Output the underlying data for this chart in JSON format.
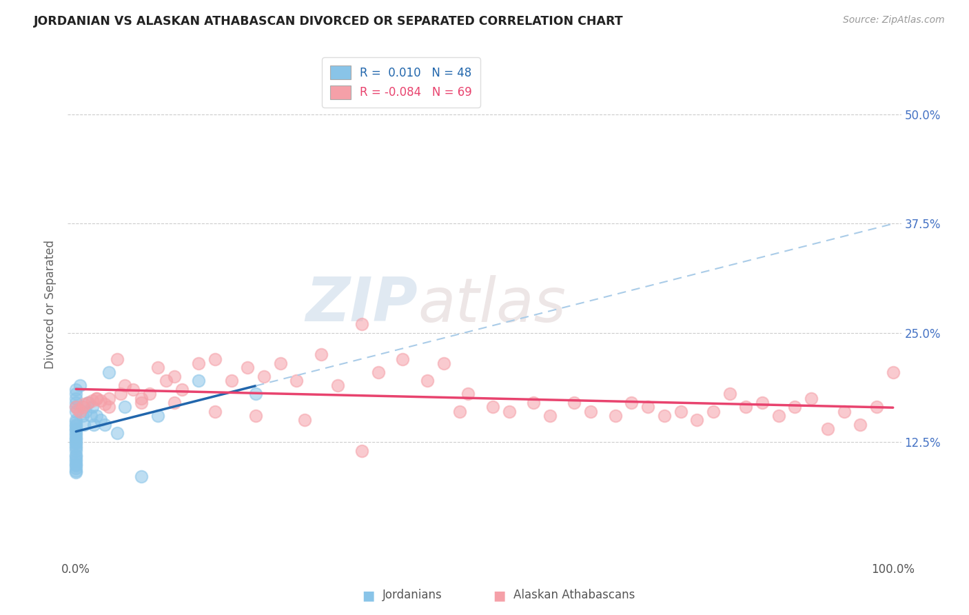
{
  "title": "JORDANIAN VS ALASKAN ATHABASCAN DIVORCED OR SEPARATED CORRELATION CHART",
  "source": "Source: ZipAtlas.com",
  "ylabel": "Divorced or Separated",
  "blue_color": "#89c4e8",
  "pink_color": "#f5a0a8",
  "blue_line_color": "#2166ac",
  "pink_line_color": "#e8436e",
  "blue_line_color2": "#aacce8",
  "background": "#ffffff",
  "grid_color": "#cccccc",
  "ytick_color": "#4472c4",
  "xlim": [
    -0.01,
    1.01
  ],
  "ylim": [
    -0.01,
    0.575
  ],
  "xtick_positions": [
    0.0,
    0.25,
    0.5,
    0.75,
    1.0
  ],
  "xtick_labels": [
    "0.0%",
    "",
    "",
    "",
    "100.0%"
  ],
  "ytick_positions": [
    0.125,
    0.25,
    0.375,
    0.5
  ],
  "ytick_labels": [
    "12.5%",
    "25.0%",
    "37.5%",
    "50.0%"
  ],
  "legend_r1": "R =  0.010",
  "legend_n1": "N = 48",
  "legend_r2": "R = -0.084",
  "legend_n2": "N = 69",
  "watermark_zip": "ZIP",
  "watermark_atlas": "atlas",
  "jordanian_x": [
    0.0,
    0.0,
    0.0,
    0.0,
    0.0,
    0.0,
    0.0,
    0.0,
    0.0,
    0.0,
    0.0,
    0.0,
    0.0,
    0.0,
    0.0,
    0.0,
    0.0,
    0.0,
    0.0,
    0.0,
    0.0,
    0.0,
    0.0,
    0.0,
    0.0,
    0.0,
    0.0,
    0.0,
    0.0,
    0.0,
    0.005,
    0.008,
    0.01,
    0.012,
    0.015,
    0.018,
    0.02,
    0.022,
    0.025,
    0.03,
    0.035,
    0.04,
    0.05,
    0.06,
    0.08,
    0.1,
    0.15,
    0.22
  ],
  "jordanian_y": [
    0.15,
    0.148,
    0.145,
    0.143,
    0.14,
    0.138,
    0.135,
    0.133,
    0.13,
    0.128,
    0.125,
    0.123,
    0.12,
    0.118,
    0.115,
    0.11,
    0.108,
    0.105,
    0.103,
    0.1,
    0.098,
    0.095,
    0.092,
    0.09,
    0.16,
    0.165,
    0.17,
    0.175,
    0.18,
    0.185,
    0.19,
    0.155,
    0.145,
    0.16,
    0.17,
    0.155,
    0.165,
    0.145,
    0.155,
    0.15,
    0.145,
    0.205,
    0.135,
    0.165,
    0.085,
    0.155,
    0.195,
    0.18
  ],
  "athabascan_x": [
    0.0,
    0.002,
    0.005,
    0.008,
    0.01,
    0.015,
    0.02,
    0.025,
    0.03,
    0.035,
    0.04,
    0.05,
    0.06,
    0.07,
    0.08,
    0.09,
    0.1,
    0.11,
    0.12,
    0.13,
    0.15,
    0.17,
    0.19,
    0.21,
    0.23,
    0.25,
    0.27,
    0.3,
    0.32,
    0.35,
    0.37,
    0.4,
    0.43,
    0.45,
    0.48,
    0.51,
    0.53,
    0.56,
    0.58,
    0.61,
    0.63,
    0.66,
    0.68,
    0.7,
    0.72,
    0.74,
    0.76,
    0.78,
    0.8,
    0.82,
    0.84,
    0.86,
    0.88,
    0.9,
    0.92,
    0.94,
    0.96,
    0.98,
    1.0,
    0.025,
    0.04,
    0.055,
    0.08,
    0.12,
    0.17,
    0.22,
    0.28,
    0.35,
    0.47
  ],
  "athabascan_y": [
    0.165,
    0.162,
    0.16,
    0.165,
    0.168,
    0.17,
    0.172,
    0.175,
    0.172,
    0.168,
    0.165,
    0.22,
    0.19,
    0.185,
    0.175,
    0.18,
    0.21,
    0.195,
    0.2,
    0.185,
    0.215,
    0.22,
    0.195,
    0.21,
    0.2,
    0.215,
    0.195,
    0.225,
    0.19,
    0.26,
    0.205,
    0.22,
    0.195,
    0.215,
    0.18,
    0.165,
    0.16,
    0.17,
    0.155,
    0.17,
    0.16,
    0.155,
    0.17,
    0.165,
    0.155,
    0.16,
    0.15,
    0.16,
    0.18,
    0.165,
    0.17,
    0.155,
    0.165,
    0.175,
    0.14,
    0.16,
    0.145,
    0.165,
    0.205,
    0.175,
    0.175,
    0.18,
    0.17,
    0.17,
    0.16,
    0.155,
    0.15,
    0.115,
    0.16
  ]
}
